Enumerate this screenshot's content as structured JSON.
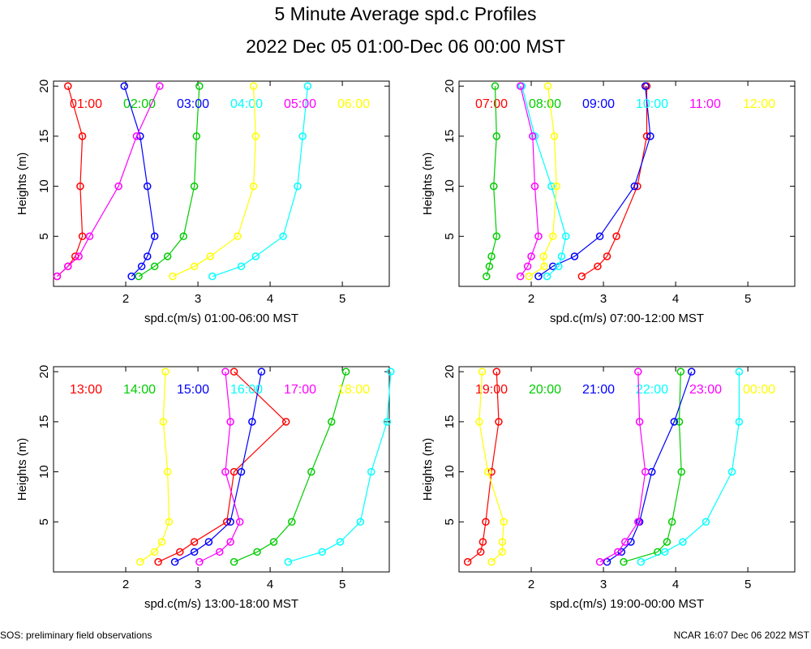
{
  "title": "5 Minute Average spd.c Profiles",
  "subtitle": "2022 Dec 05 01:00-Dec 06 00:00 MST",
  "footer_left": "SOS: preliminary field observations",
  "footer_right": "NCAR 16:07 Dec 06 2022 MST",
  "chart_data": [
    {
      "type": "line",
      "xlabel": "spd.c(m/s) 01:00-06:00 MST",
      "ylabel": "Heights (m)",
      "xlim": [
        1,
        5.65
      ],
      "ylim": [
        0,
        20.5
      ],
      "xticks": [
        2,
        3,
        4,
        5
      ],
      "yticks": [
        5,
        10,
        15,
        20
      ],
      "heights": [
        1,
        2,
        3,
        5,
        10,
        15,
        20
      ],
      "series": [
        {
          "name": "01:00",
          "color": "#ff0000",
          "values": [
            1.05,
            1.2,
            1.3,
            1.4,
            1.37,
            1.4,
            1.2
          ]
        },
        {
          "name": "02:00",
          "color": "#00cc00",
          "values": [
            2.18,
            2.4,
            2.58,
            2.8,
            2.95,
            2.98,
            3.02
          ]
        },
        {
          "name": "03:00",
          "color": "#0000ff",
          "values": [
            2.08,
            2.22,
            2.3,
            2.4,
            2.3,
            2.2,
            1.98
          ]
        },
        {
          "name": "04:00",
          "color": "#00ffff",
          "values": [
            3.2,
            3.6,
            3.8,
            4.18,
            4.38,
            4.45,
            4.52
          ]
        },
        {
          "name": "05:00",
          "color": "#ff00ff",
          "values": [
            1.05,
            1.2,
            1.35,
            1.5,
            1.9,
            2.15,
            2.47
          ]
        },
        {
          "name": "06:00",
          "color": "#ffff00",
          "values": [
            2.65,
            2.95,
            3.17,
            3.55,
            3.77,
            3.8,
            3.77
          ]
        }
      ]
    },
    {
      "type": "line",
      "xlabel": "spd.c(m/s) 07:00-12:00 MST",
      "ylabel": "Heights (m)",
      "xlim": [
        1,
        5.65
      ],
      "ylim": [
        0,
        20.5
      ],
      "xticks": [
        2,
        3,
        4,
        5
      ],
      "yticks": [
        5,
        10,
        15,
        20
      ],
      "heights": [
        1,
        2,
        3,
        5,
        10,
        15,
        20
      ],
      "series": [
        {
          "name": "07:00",
          "color": "#ff0000",
          "values": [
            2.7,
            2.92,
            3.05,
            3.18,
            3.47,
            3.6,
            3.6
          ]
        },
        {
          "name": "08:00",
          "color": "#00cc00",
          "values": [
            1.38,
            1.42,
            1.45,
            1.52,
            1.48,
            1.52,
            1.5
          ]
        },
        {
          "name": "09:00",
          "color": "#0000ff",
          "values": [
            2.1,
            2.3,
            2.6,
            2.95,
            3.43,
            3.65,
            3.58
          ]
        },
        {
          "name": "10:00",
          "color": "#00ffff",
          "values": [
            2.22,
            2.38,
            2.42,
            2.48,
            2.28,
            2.05,
            1.87
          ]
        },
        {
          "name": "11:00",
          "color": "#ff00ff",
          "values": [
            1.85,
            1.95,
            2.0,
            2.1,
            2.05,
            2.02,
            1.85
          ]
        },
        {
          "name": "12:00",
          "color": "#ffff00",
          "values": [
            1.97,
            2.18,
            2.17,
            2.3,
            2.35,
            2.32,
            2.23
          ]
        }
      ]
    },
    {
      "type": "line",
      "xlabel": "spd.c(m/s) 13:00-18:00 MST",
      "ylabel": "Heights (m)",
      "xlim": [
        1,
        5.65
      ],
      "ylim": [
        0,
        20.5
      ],
      "xticks": [
        2,
        3,
        4,
        5
      ],
      "yticks": [
        5,
        10,
        15,
        20
      ],
      "heights": [
        1,
        2,
        3,
        5,
        10,
        15,
        20
      ],
      "series": [
        {
          "name": "13:00",
          "color": "#ff0000",
          "values": [
            2.45,
            2.75,
            2.95,
            3.4,
            3.5,
            4.22,
            3.5
          ]
        },
        {
          "name": "14:00",
          "color": "#00cc00",
          "values": [
            3.5,
            3.82,
            4.05,
            4.3,
            4.57,
            4.85,
            5.05
          ]
        },
        {
          "name": "15:00",
          "color": "#0000ff",
          "values": [
            2.68,
            2.95,
            3.15,
            3.45,
            3.6,
            3.75,
            3.88
          ]
        },
        {
          "name": "16:00",
          "color": "#00ffff",
          "values": [
            4.25,
            4.72,
            4.97,
            5.25,
            5.4,
            5.62,
            5.67
          ]
        },
        {
          "name": "17:00",
          "color": "#ff00ff",
          "values": [
            3.02,
            3.3,
            3.45,
            3.58,
            3.38,
            3.45,
            3.38
          ]
        },
        {
          "name": "18:00",
          "color": "#ffff00",
          "values": [
            2.2,
            2.4,
            2.5,
            2.6,
            2.58,
            2.52,
            2.55
          ]
        }
      ]
    },
    {
      "type": "line",
      "xlabel": "spd.c(m/s) 19:00-00:00 MST",
      "ylabel": "Heights (m)",
      "xlim": [
        1,
        5.65
      ],
      "ylim": [
        0,
        20.5
      ],
      "xticks": [
        2,
        3,
        4,
        5
      ],
      "yticks": [
        5,
        10,
        15,
        20
      ],
      "heights": [
        1,
        2,
        3,
        5,
        10,
        15,
        20
      ],
      "series": [
        {
          "name": "19:00",
          "color": "#ff0000",
          "values": [
            1.12,
            1.3,
            1.33,
            1.37,
            1.45,
            1.55,
            1.52
          ]
        },
        {
          "name": "20:00",
          "color": "#00cc00",
          "values": [
            3.28,
            3.75,
            3.88,
            3.95,
            4.08,
            4.05,
            4.07
          ]
        },
        {
          "name": "21:00",
          "color": "#0000ff",
          "values": [
            3.05,
            3.25,
            3.38,
            3.5,
            3.67,
            3.98,
            4.22
          ]
        },
        {
          "name": "22:00",
          "color": "#00ffff",
          "values": [
            3.52,
            3.85,
            4.1,
            4.42,
            4.78,
            4.88,
            4.88
          ]
        },
        {
          "name": "23:00",
          "color": "#ff00ff",
          "values": [
            2.95,
            3.2,
            3.3,
            3.48,
            3.58,
            3.5,
            3.48
          ]
        },
        {
          "name": "00:00",
          "color": "#ffff00",
          "values": [
            1.45,
            1.6,
            1.6,
            1.62,
            1.4,
            1.28,
            1.32
          ]
        }
      ]
    }
  ]
}
